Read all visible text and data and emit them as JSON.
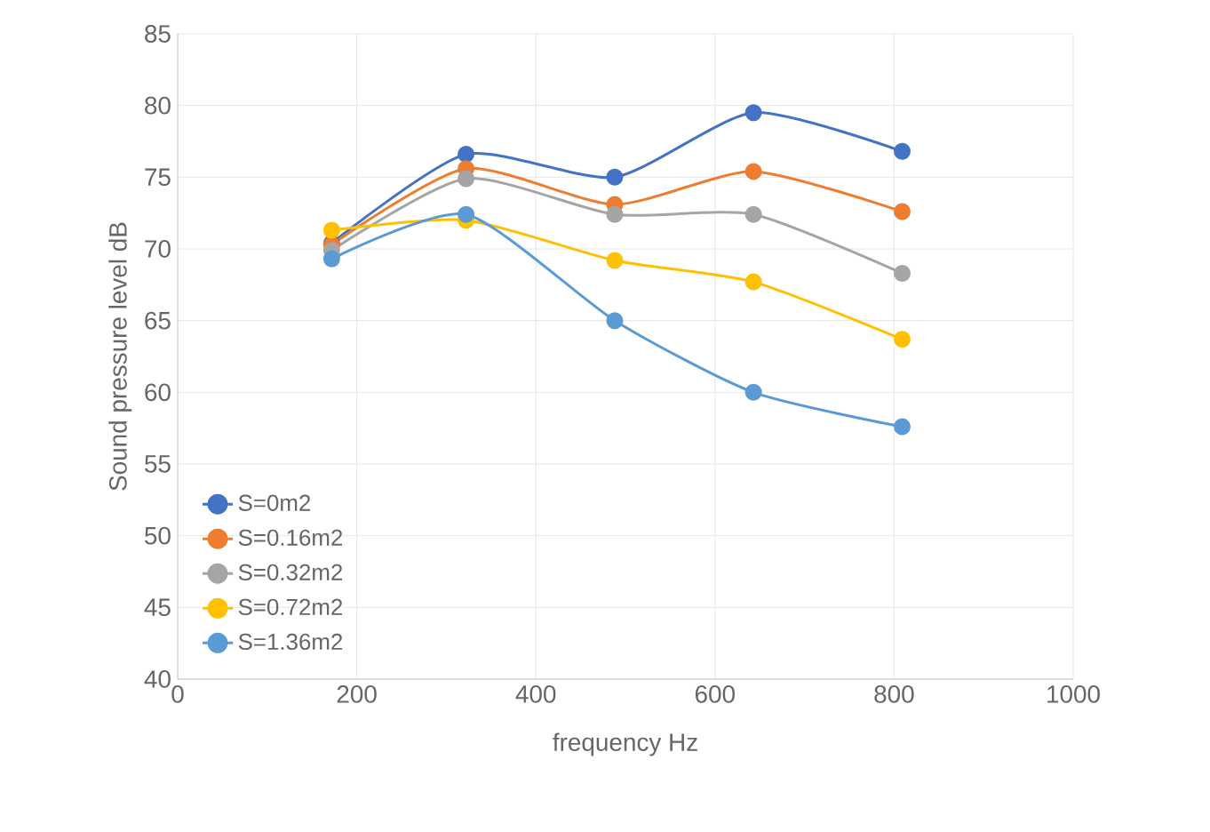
{
  "chart_data": {
    "type": "line",
    "xlabel": "frequency Hz",
    "ylabel": "Sound pressure level dB",
    "x": [
      172,
      322,
      488,
      643,
      809
    ],
    "series": [
      {
        "name": "S=0m2",
        "color": "#4472c4",
        "values": [
          70.4,
          76.6,
          75.0,
          79.5,
          76.8
        ]
      },
      {
        "name": "S=0.16m2",
        "color": "#ed7d31",
        "values": [
          70.3,
          75.6,
          73.1,
          75.4,
          72.6
        ]
      },
      {
        "name": "S=0.32m2",
        "color": "#a5a5a5",
        "values": [
          69.9,
          74.9,
          72.4,
          72.4,
          68.3
        ]
      },
      {
        "name": "S=0.72m2",
        "color": "#ffc000",
        "values": [
          71.3,
          72.0,
          69.2,
          67.7,
          63.7
        ]
      },
      {
        "name": "S=1.36m2",
        "color": "#5b9bd5",
        "values": [
          69.3,
          72.4,
          65.0,
          60.0,
          57.6
        ]
      }
    ],
    "xlim": [
      0,
      1000
    ],
    "ylim": [
      40,
      85
    ],
    "xticks": [
      0,
      200,
      400,
      600,
      800,
      1000
    ],
    "yticks": [
      40,
      45,
      50,
      55,
      60,
      65,
      70,
      75,
      80,
      85
    ],
    "grid": true,
    "legend": "left",
    "marker": "circle",
    "line_style": "solid"
  }
}
